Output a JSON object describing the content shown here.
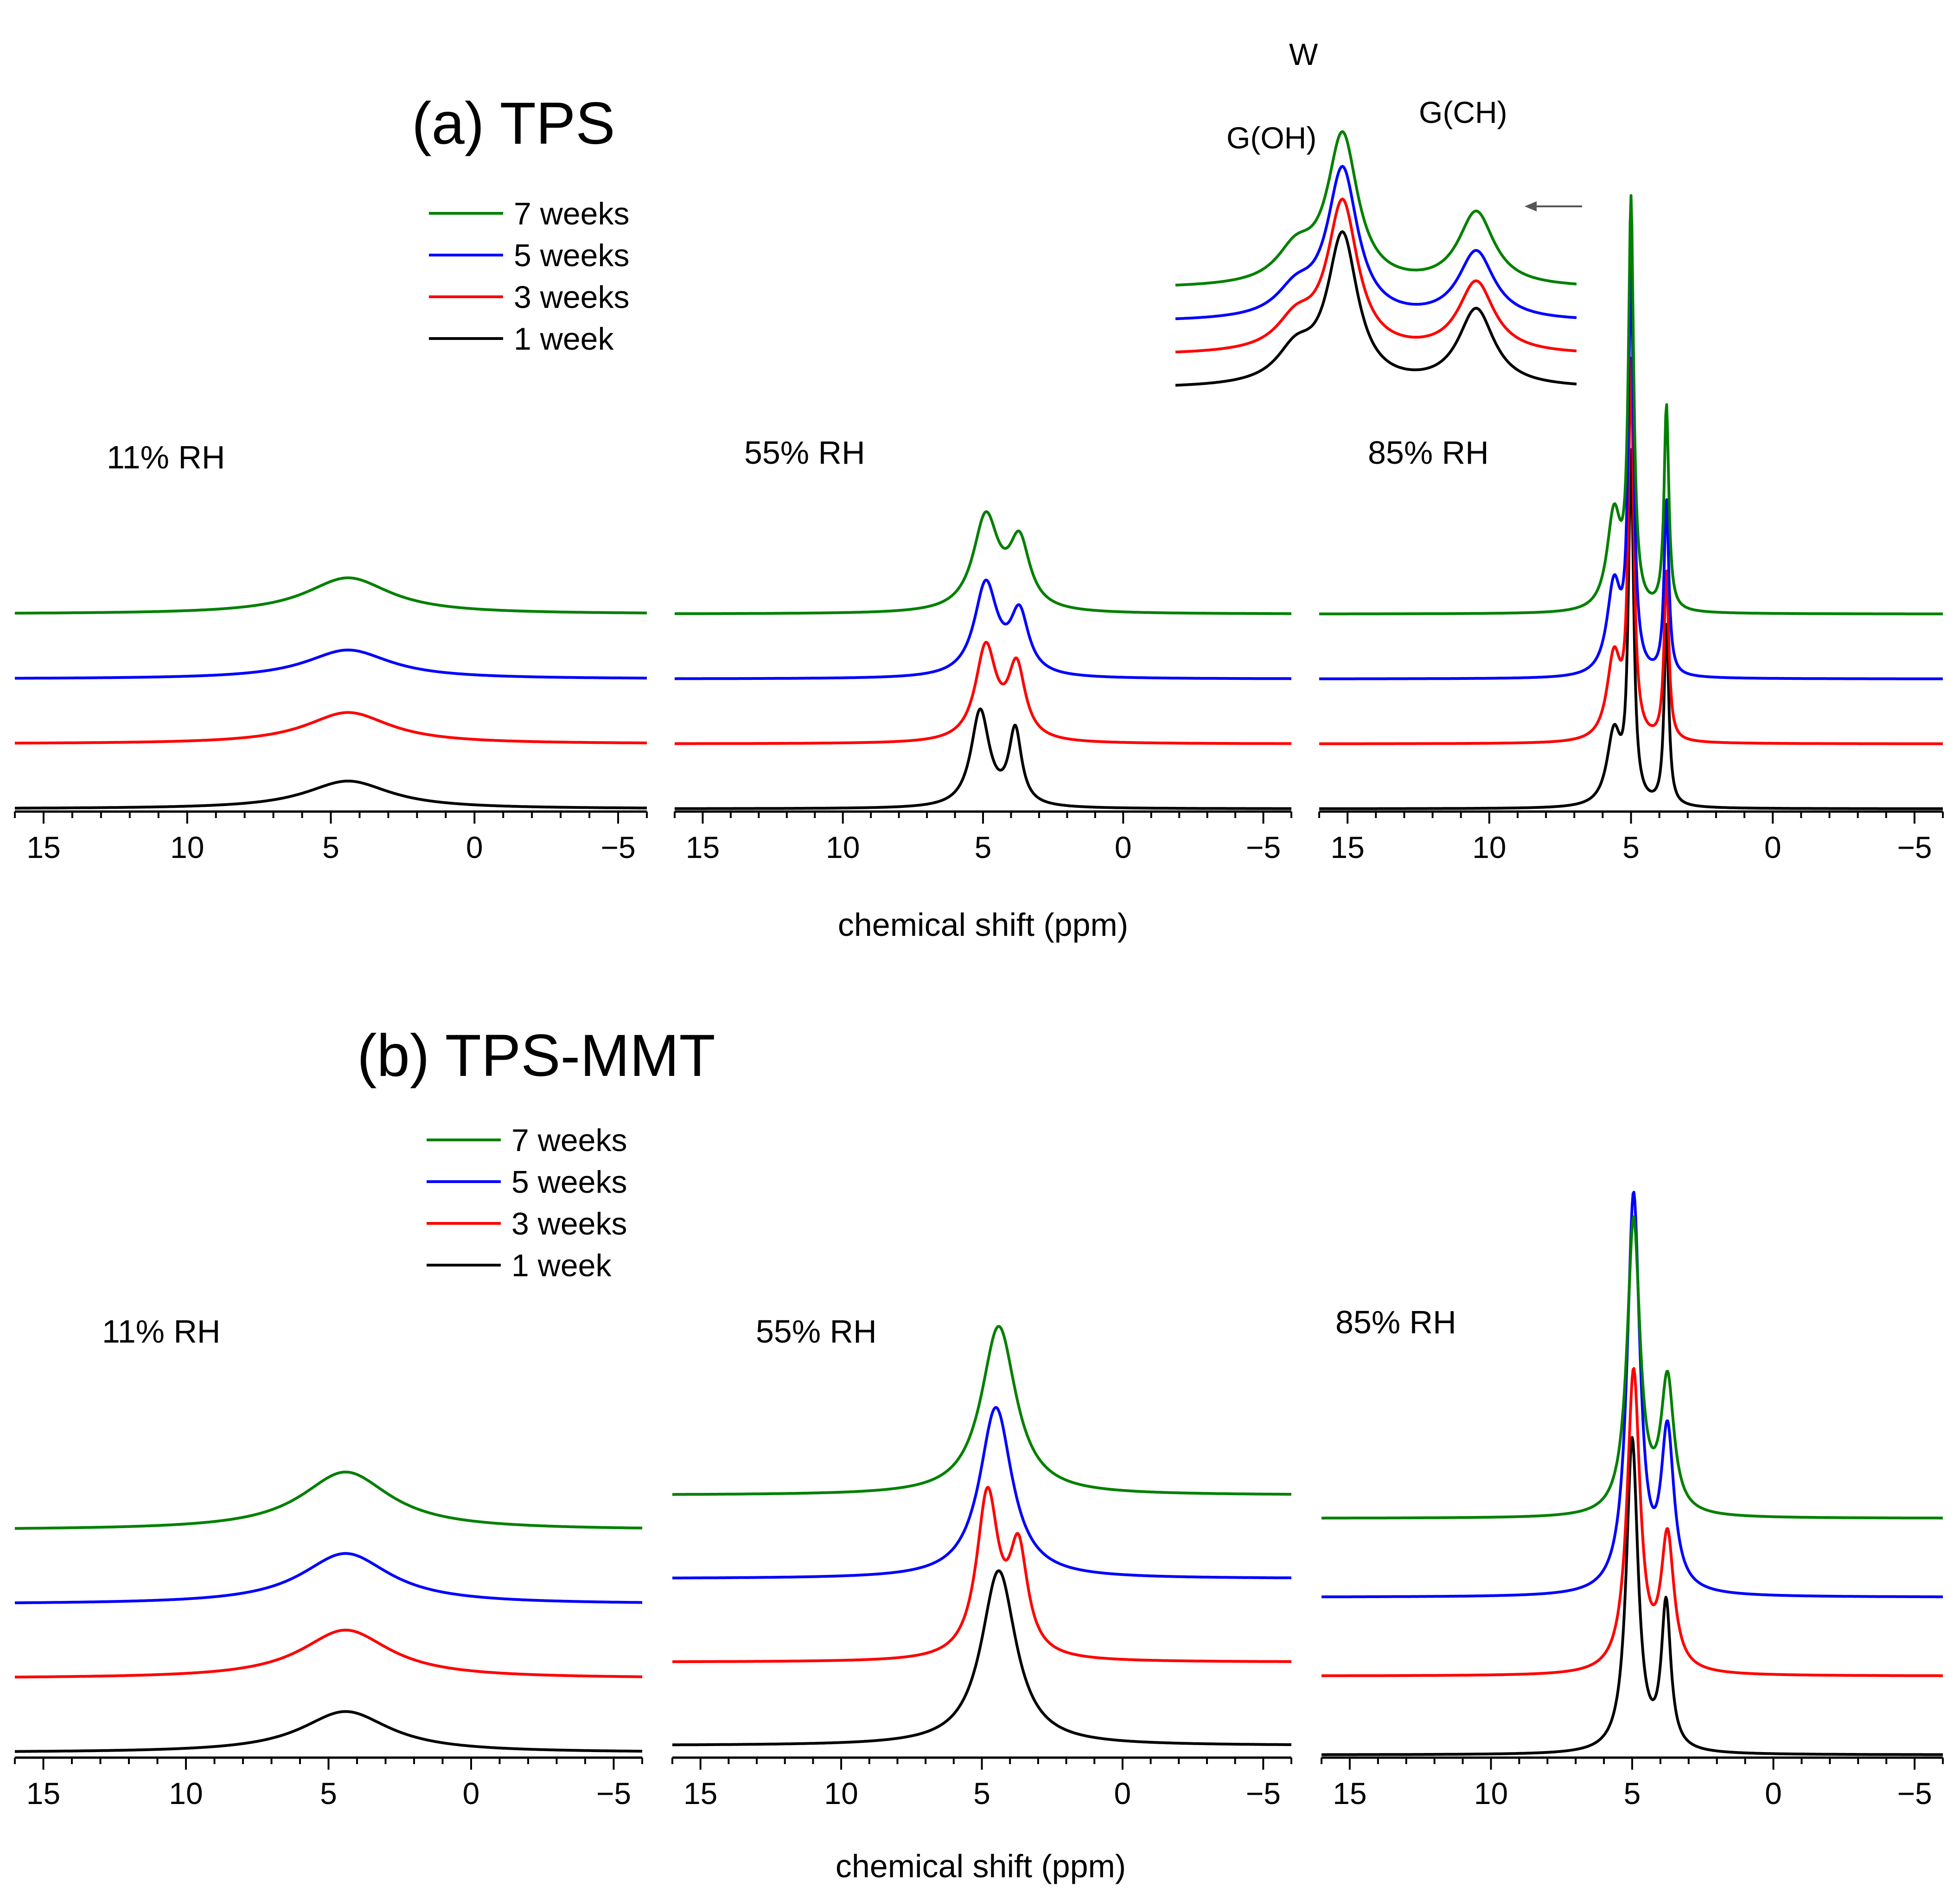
{
  "figure": {
    "panel_a_title": "(a) TPS",
    "panel_b_title": "(b) TPS-MMT",
    "xlabel": "chemical shift (ppm)"
  },
  "colors": {
    "7 weeks": "#008000",
    "5 weeks": "#0000ff",
    "3 weeks": "#ff0000",
    "1 week": "#000000"
  },
  "legend": [
    "7 weeks",
    "5 weeks",
    "3 weeks",
    "1 week"
  ],
  "inset": {
    "peak_labels": [
      "W",
      "G(OH)",
      "G(CH)"
    ]
  },
  "chart_data": [
    {
      "type": "line",
      "panel": "a",
      "title": "11% RH",
      "xlabel": "chemical shift (ppm)",
      "xlim": [
        16,
        -6
      ],
      "xticks": [
        15,
        10,
        5,
        0,
        -5
      ],
      "xticklabels": [
        "15",
        "10",
        "5",
        "0",
        "−5"
      ],
      "series": [
        {
          "name": "7 weeks",
          "peaks": [
            {
              "center": 4.4,
              "width": 3.6,
              "height": 0.3
            }
          ]
        },
        {
          "name": "5 weeks",
          "peaks": [
            {
              "center": 4.4,
              "width": 3.6,
              "height": 0.24
            }
          ]
        },
        {
          "name": "3 weeks",
          "peaks": [
            {
              "center": 4.4,
              "width": 3.6,
              "height": 0.26
            }
          ]
        },
        {
          "name": "1 week",
          "peaks": [
            {
              "center": 4.4,
              "width": 3.6,
              "height": 0.23
            }
          ]
        }
      ]
    },
    {
      "type": "line",
      "panel": "a",
      "title": "55% RH",
      "xlabel": "chemical shift (ppm)",
      "xlim": [
        16,
        -6
      ],
      "xticks": [
        15,
        10,
        5,
        0,
        -5
      ],
      "xticklabels": [
        "15",
        "10",
        "5",
        "0",
        "−5"
      ],
      "series": [
        {
          "name": "7 weeks",
          "peaks": [
            {
              "center": 4.9,
              "width": 1.1,
              "height": 0.78
            },
            {
              "center": 3.7,
              "width": 0.9,
              "height": 0.55
            }
          ]
        },
        {
          "name": "5 weeks",
          "peaks": [
            {
              "center": 4.9,
              "width": 1.0,
              "height": 0.77
            },
            {
              "center": 3.7,
              "width": 0.8,
              "height": 0.5
            }
          ]
        },
        {
          "name": "3 weeks",
          "peaks": [
            {
              "center": 4.9,
              "width": 0.9,
              "height": 0.78
            },
            {
              "center": 3.8,
              "width": 0.75,
              "height": 0.6
            }
          ]
        },
        {
          "name": "1 week",
          "peaks": [
            {
              "center": 5.1,
              "width": 0.8,
              "height": 0.8
            },
            {
              "center": 3.85,
              "width": 0.55,
              "height": 0.62
            }
          ]
        }
      ]
    },
    {
      "type": "line",
      "panel": "a",
      "title": "85% RH",
      "xlabel": "chemical shift (ppm)",
      "xlim": [
        16,
        -6
      ],
      "xticks": [
        15,
        10,
        5,
        0,
        -5
      ],
      "xticklabels": [
        "15",
        "10",
        "5",
        "0",
        "−5"
      ],
      "series": [
        {
          "name": "7 weeks",
          "peaks": [
            {
              "center": 5.0,
              "width": 0.22,
              "height": 3.3
            },
            {
              "center": 5.6,
              "width": 0.6,
              "height": 0.8
            },
            {
              "center": 3.75,
              "width": 0.2,
              "height": 1.7
            }
          ]
        },
        {
          "name": "5 weeks",
          "peaks": [
            {
              "center": 5.0,
              "width": 0.22,
              "height": 3.3
            },
            {
              "center": 5.6,
              "width": 0.6,
              "height": 0.75
            },
            {
              "center": 3.75,
              "width": 0.2,
              "height": 1.45
            }
          ]
        },
        {
          "name": "3 weeks",
          "peaks": [
            {
              "center": 5.0,
              "width": 0.22,
              "height": 3.05
            },
            {
              "center": 5.6,
              "width": 0.6,
              "height": 0.7
            },
            {
              "center": 3.75,
              "width": 0.2,
              "height": 1.4
            }
          ]
        },
        {
          "name": "1 week",
          "peaks": [
            {
              "center": 5.0,
              "width": 0.22,
              "height": 2.85
            },
            {
              "center": 5.6,
              "width": 0.6,
              "height": 0.6
            },
            {
              "center": 3.75,
              "width": 0.2,
              "height": 1.5
            }
          ]
        }
      ]
    },
    {
      "type": "line",
      "panel": "b",
      "title": "11% RH",
      "xlabel": "chemical shift (ppm)",
      "xlim": [
        16,
        -6
      ],
      "xticks": [
        15,
        10,
        5,
        0,
        -5
      ],
      "xticklabels": [
        "15",
        "10",
        "5",
        "0",
        "−5"
      ],
      "series": [
        {
          "name": "7 weeks",
          "peaks": [
            {
              "center": 4.4,
              "width": 3.8,
              "height": 0.48
            }
          ]
        },
        {
          "name": "5 weeks",
          "peaks": [
            {
              "center": 4.4,
              "width": 3.8,
              "height": 0.42
            }
          ]
        },
        {
          "name": "3 weeks",
          "peaks": [
            {
              "center": 4.4,
              "width": 3.8,
              "height": 0.4
            }
          ]
        },
        {
          "name": "1 week",
          "peaks": [
            {
              "center": 4.4,
              "width": 3.8,
              "height": 0.34
            }
          ]
        }
      ]
    },
    {
      "type": "line",
      "panel": "b",
      "title": "55% RH",
      "xlabel": "chemical shift (ppm)",
      "xlim": [
        16,
        -6
      ],
      "xticks": [
        15,
        10,
        5,
        0,
        -5
      ],
      "xticklabels": [
        "15",
        "10",
        "5",
        "0",
        "−5"
      ],
      "series": [
        {
          "name": "7 weeks",
          "peaks": [
            {
              "center": 4.4,
              "width": 1.5,
              "height": 1.4
            }
          ]
        },
        {
          "name": "5 weeks",
          "peaks": [
            {
              "center": 4.5,
              "width": 1.4,
              "height": 1.42
            }
          ]
        },
        {
          "name": "3 weeks",
          "peaks": [
            {
              "center": 4.8,
              "width": 0.95,
              "height": 1.35
            },
            {
              "center": 3.7,
              "width": 0.8,
              "height": 0.85
            }
          ]
        },
        {
          "name": "1 week",
          "peaks": [
            {
              "center": 4.4,
              "width": 1.5,
              "height": 1.45
            }
          ]
        }
      ]
    },
    {
      "type": "line",
      "panel": "b",
      "title": "85% RH",
      "xlabel": "chemical shift (ppm)",
      "xlim": [
        16,
        -6
      ],
      "xticks": [
        15,
        10,
        5,
        0,
        -5
      ],
      "xticklabels": [
        "15",
        "10",
        "5",
        "0",
        "−5"
      ],
      "series": [
        {
          "name": "7 weeks",
          "peaks": [
            {
              "center": 4.95,
              "width": 0.55,
              "height": 2.45
            },
            {
              "center": 3.75,
              "width": 0.55,
              "height": 1.1
            }
          ]
        },
        {
          "name": "5 weeks",
          "peaks": [
            {
              "center": 4.95,
              "width": 0.55,
              "height": 3.3
            },
            {
              "center": 3.75,
              "width": 0.55,
              "height": 1.3
            }
          ]
        },
        {
          "name": "3 weeks",
          "peaks": [
            {
              "center": 4.95,
              "width": 0.55,
              "height": 2.5
            },
            {
              "center": 3.75,
              "width": 0.55,
              "height": 1.1
            }
          ]
        },
        {
          "name": "1 week",
          "peaks": [
            {
              "center": 5.0,
              "width": 0.5,
              "height": 2.6
            },
            {
              "center": 3.8,
              "width": 0.4,
              "height": 1.2
            }
          ]
        }
      ]
    }
  ]
}
